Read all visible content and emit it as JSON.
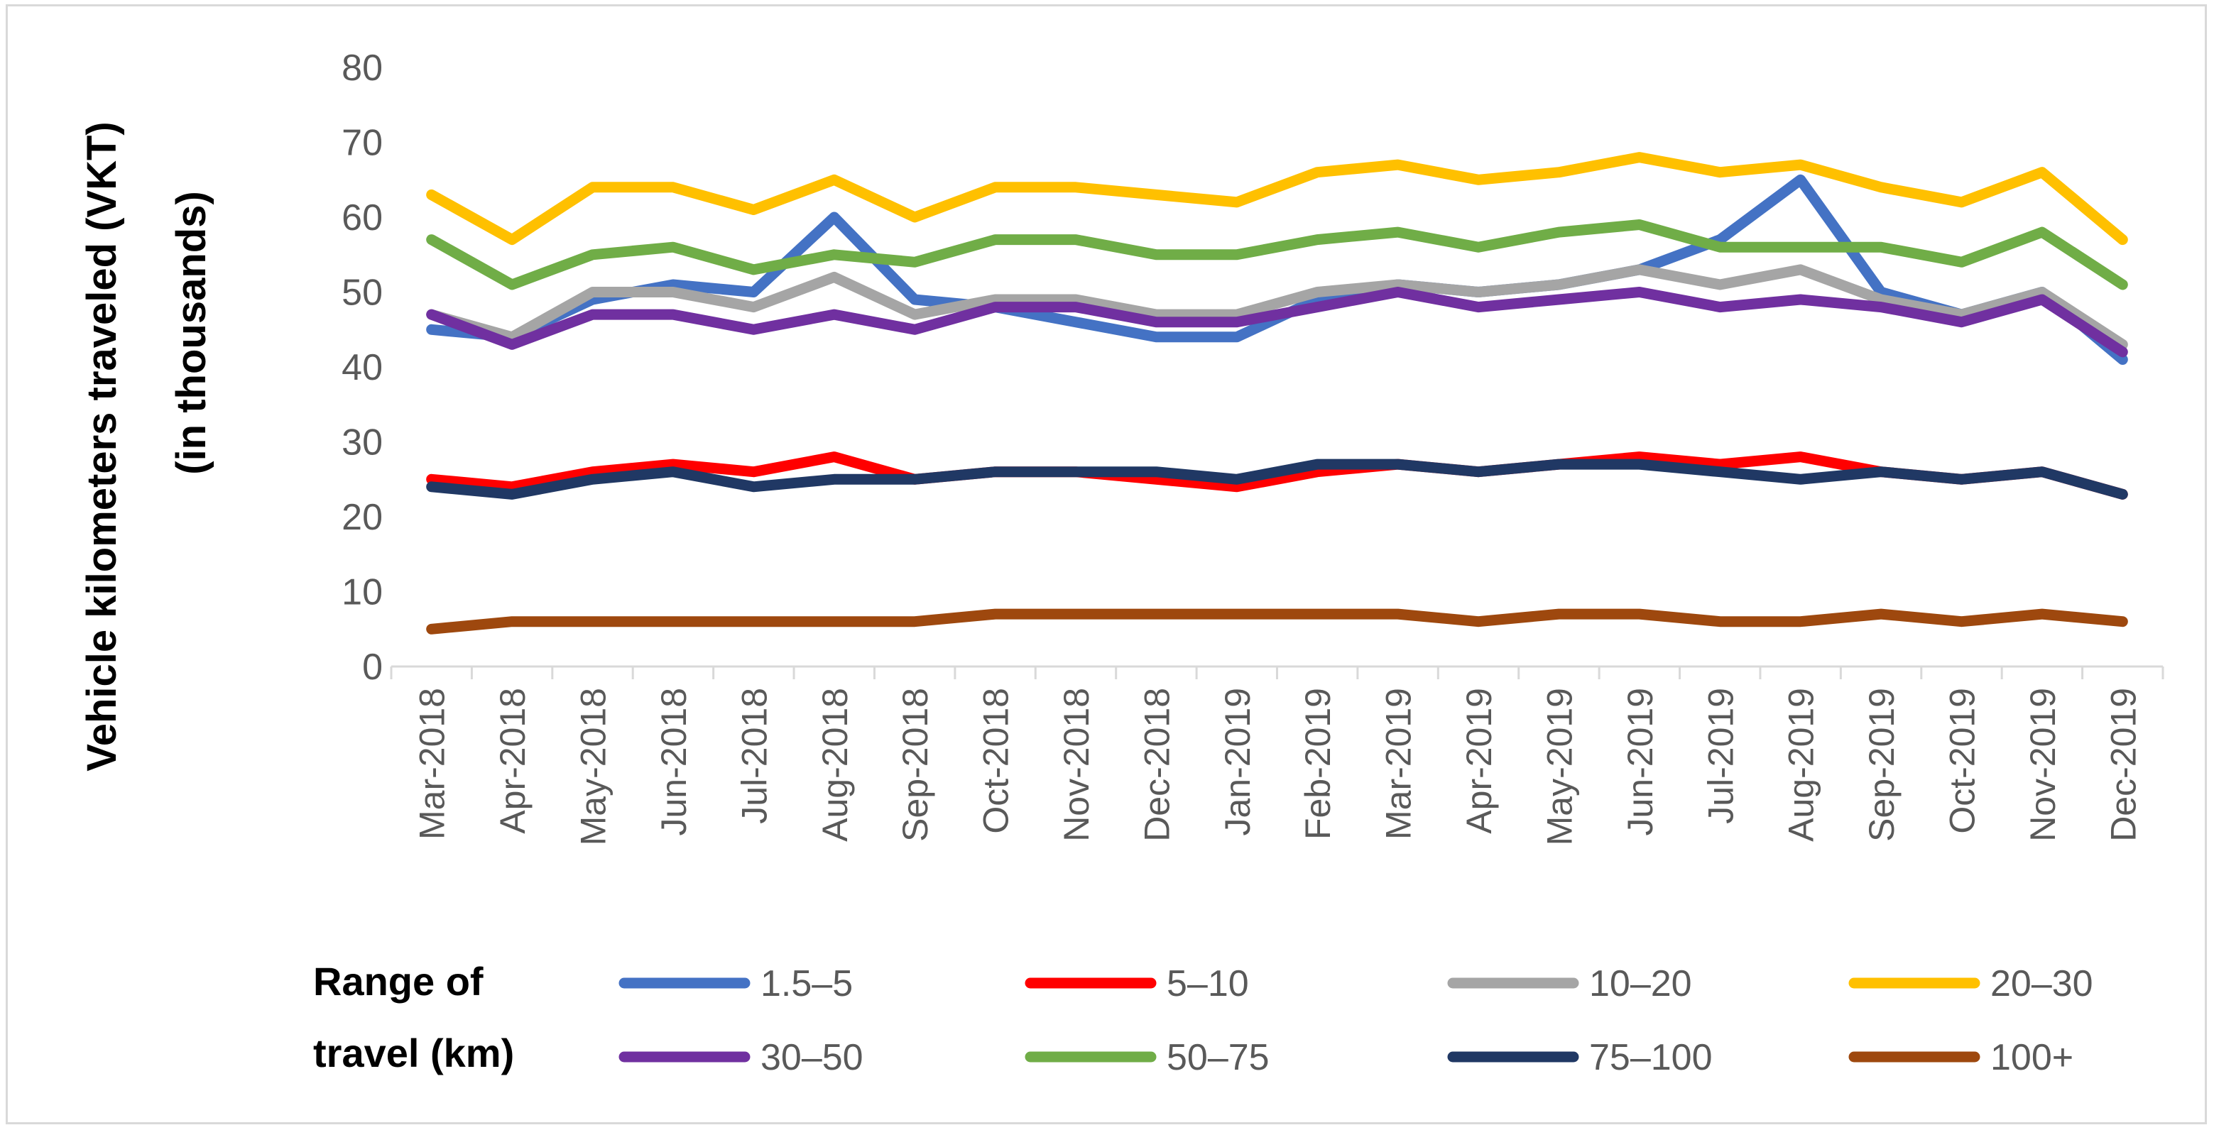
{
  "chart_data": {
    "type": "line",
    "title": "",
    "xlabel": "",
    "ylabel": "Vehicle kilometers traveled (VKT)",
    "ylabel_line2": "(in thousands)",
    "ylim": [
      0,
      80
    ],
    "yticks": [
      0,
      10,
      20,
      30,
      40,
      50,
      60,
      70,
      80
    ],
    "grid": false,
    "legend_title": "Range of travel (km)",
    "legend_title_line1": "Range of",
    "legend_title_line2": "travel (km)",
    "legend_position": "bottom",
    "categories": [
      "Mar-2018",
      "Apr-2018",
      "May-2018",
      "Jun-2018",
      "Jul-2018",
      "Aug-2018",
      "Sep-2018",
      "Oct-2018",
      "Nov-2018",
      "Dec-2018",
      "Jan-2019",
      "Feb-2019",
      "Mar-2019",
      "Apr-2019",
      "May-2019",
      "Jun-2019",
      "Jul-2019",
      "Aug-2019",
      "Sep-2019",
      "Oct-2019",
      "Nov-2019",
      "Dec-2019"
    ],
    "series": [
      {
        "name": "1.5–5",
        "color": "#4472c4",
        "values": [
          45,
          44,
          49,
          51,
          50,
          60,
          49,
          48,
          46,
          44,
          44,
          49,
          51,
          50,
          51,
          53,
          57,
          65,
          50,
          47,
          50,
          41
        ]
      },
      {
        "name": "5–10",
        "color": "#ff0000",
        "values": [
          25,
          24,
          26,
          27,
          26,
          28,
          25,
          26,
          26,
          25,
          24,
          26,
          27,
          26,
          27,
          28,
          27,
          28,
          26,
          25,
          26,
          23
        ]
      },
      {
        "name": "10–20",
        "color": "#a5a5a5",
        "values": [
          47,
          44,
          50,
          50,
          48,
          52,
          47,
          49,
          49,
          47,
          47,
          50,
          51,
          50,
          51,
          53,
          51,
          53,
          49,
          47,
          50,
          43
        ]
      },
      {
        "name": "20–30",
        "color": "#ffc000",
        "values": [
          63,
          57,
          64,
          64,
          61,
          65,
          60,
          64,
          64,
          63,
          62,
          66,
          67,
          65,
          66,
          68,
          66,
          67,
          64,
          62,
          66,
          57
        ]
      },
      {
        "name": "30–50",
        "color": "#7030a0",
        "values": [
          47,
          43,
          47,
          47,
          45,
          47,
          45,
          48,
          48,
          46,
          46,
          48,
          50,
          48,
          49,
          50,
          48,
          49,
          48,
          46,
          49,
          42
        ]
      },
      {
        "name": "50–75",
        "color": "#70ad47",
        "values": [
          57,
          51,
          55,
          56,
          53,
          55,
          54,
          57,
          57,
          55,
          55,
          57,
          58,
          56,
          58,
          59,
          56,
          56,
          56,
          54,
          58,
          51
        ]
      },
      {
        "name": "75–100",
        "color": "#203864",
        "values": [
          24,
          23,
          25,
          26,
          24,
          25,
          25,
          26,
          26,
          26,
          25,
          27,
          27,
          26,
          27,
          27,
          26,
          25,
          26,
          25,
          26,
          23
        ]
      },
      {
        "name": "100+",
        "color": "#9e480e",
        "values": [
          5,
          6,
          6,
          6,
          6,
          6,
          6,
          7,
          7,
          7,
          7,
          7,
          7,
          6,
          7,
          7,
          6,
          6,
          7,
          6,
          7,
          6
        ]
      }
    ]
  }
}
